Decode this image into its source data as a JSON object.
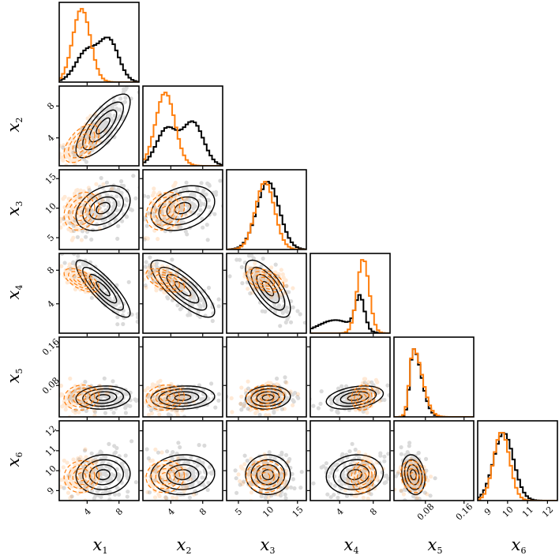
{
  "chart_data": {
    "type": "corner",
    "variables": [
      {
        "label": "x1",
        "display": "x",
        "sub": "1",
        "lim": [
          0.5,
          10.5
        ],
        "ticks": [
          4,
          8
        ],
        "tick_labels": [
          "4",
          "8"
        ]
      },
      {
        "label": "x2",
        "display": "x",
        "sub": "2",
        "lim": [
          0.5,
          10.5
        ],
        "ticks": [
          4,
          8
        ],
        "tick_labels": [
          "4",
          "8"
        ]
      },
      {
        "label": "x3",
        "display": "x",
        "sub": "3",
        "lim": [
          3.0,
          16.5
        ],
        "ticks": [
          5,
          10,
          15
        ],
        "tick_labels": [
          "5",
          "10",
          "15"
        ]
      },
      {
        "label": "x4",
        "display": "x",
        "sub": "4",
        "lim": [
          0.5,
          10.0
        ],
        "ticks": [
          4,
          8
        ],
        "tick_labels": [
          "4",
          "8"
        ]
      },
      {
        "label": "x5",
        "display": "x",
        "sub": "5",
        "lim": [
          0.015,
          0.18
        ],
        "ticks": [
          0.08,
          0.16
        ],
        "tick_labels": [
          "0.08",
          "0.16"
        ]
      },
      {
        "label": "x6",
        "display": "x",
        "sub": "6",
        "lim": [
          8.5,
          12.5
        ],
        "ticks": [
          9,
          10,
          11,
          12
        ],
        "tick_labels": [
          "9",
          "10",
          "11",
          "12"
        ]
      }
    ],
    "y_tick_labels": {
      "x2": [
        "4",
        "8"
      ],
      "x3": [
        "5",
        "10",
        "15"
      ],
      "x4": [
        "4",
        "8"
      ],
      "x5": [
        "0.08",
        "0.16"
      ],
      "x6": [
        "9",
        "10",
        "11",
        "12"
      ]
    },
    "series": [
      {
        "color": "#000000",
        "style": "contours-solid",
        "means": [
          6.0,
          5.5,
          10.0,
          5.8,
          0.055,
          9.8
        ],
        "sds": [
          1.7,
          2.0,
          1.9,
          1.7,
          0.012,
          0.5
        ]
      },
      {
        "color": "#ff7f0e",
        "style": "contours-dashed",
        "means": [
          3.3,
          3.3,
          9.5,
          6.8,
          0.055,
          9.7
        ],
        "sds": [
          1.1,
          1.2,
          1.6,
          0.7,
          0.013,
          0.4
        ]
      }
    ],
    "grid": false,
    "legend": "none"
  },
  "colors": {
    "series_a": "#000000",
    "series_b": "#ff7f0e",
    "frame": "#000000"
  }
}
